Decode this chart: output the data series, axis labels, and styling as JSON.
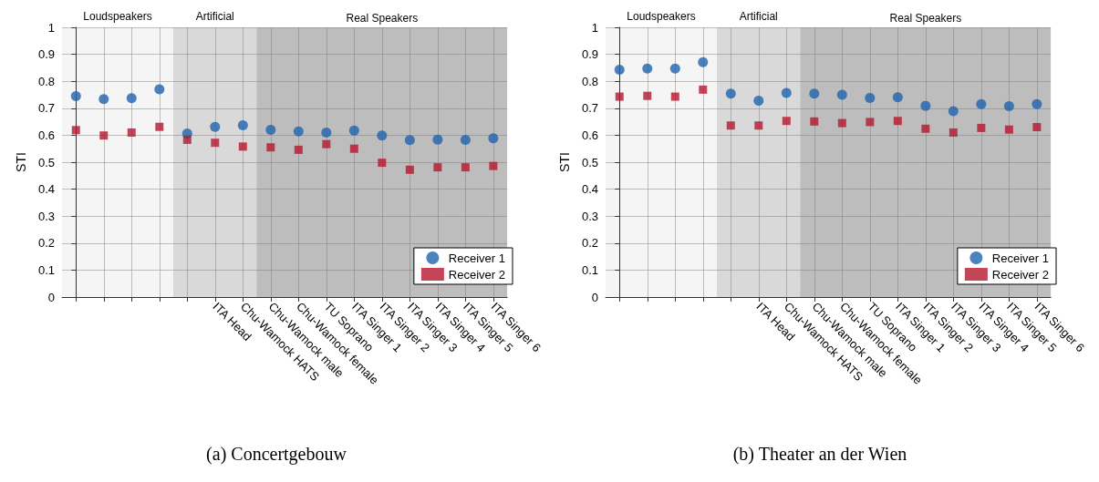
{
  "chart_data": [
    {
      "type": "scatter",
      "title": "(a) Concertgebouw",
      "ylabel": "STI",
      "categories": [
        null,
        null,
        null,
        null,
        null,
        "ITA Head",
        "Chu-Wamock HATS",
        "Chu-Wamock male",
        "Chu-Wamock female",
        "TU Soprano",
        "ITA Singer 1",
        "ITA Singer 2",
        "ITA Singer 3",
        "ITA Singer 4",
        "ITA Singer 5",
        "ITA Singer 6"
      ],
      "series": [
        {
          "name": "Receiver 1",
          "color": "#1f63ad",
          "marker": "circle",
          "values": [
            0.745,
            0.734,
            0.737,
            0.77,
            0.606,
            0.631,
            0.637,
            0.62,
            0.614,
            0.61,
            0.617,
            0.599,
            0.582,
            0.584,
            0.583,
            0.589
          ]
        },
        {
          "name": "Receiver 2",
          "color": "#b5172e",
          "marker": "square",
          "values": [
            0.619,
            0.599,
            0.61,
            0.631,
            0.583,
            0.572,
            0.558,
            0.555,
            0.546,
            0.567,
            0.55,
            0.498,
            0.472,
            0.481,
            0.481,
            0.486
          ]
        }
      ],
      "bands": [
        {
          "axis": "x",
          "from": "Chu-Wamock male",
          "to": "ITA Singer 6",
          "label": "Real Speakers",
          "color": "#bdbdbd"
        }
      ],
      "annotations": [
        "Loudspeakers",
        "Artificial"
      ],
      "ylim": [
        0,
        1
      ],
      "yticks": [
        0,
        0.1,
        0.2,
        0.3,
        0.4,
        0.5,
        0.6,
        0.7,
        0.8,
        0.9,
        1
      ],
      "grid": true,
      "legend": "bottom right"
    },
    {
      "type": "scatter",
      "title": "(b) Theater an der Wien",
      "ylabel": "STI",
      "categories": [
        null,
        null,
        null,
        null,
        null,
        "ITA Head",
        "Chu-Wamock HATS",
        "Chu-Wamock male",
        "Chu-Wamock female",
        "TU Soprano",
        "ITA Singer 1",
        "ITA Singer 2",
        "ITA Singer 3",
        "ITA Singer 4",
        "ITA Singer 5",
        "ITA Singer 6"
      ],
      "series": [
        {
          "name": "Receiver 1",
          "color": "#1f63ad",
          "marker": "circle",
          "values": [
            0.843,
            0.847,
            0.847,
            0.871,
            0.754,
            0.728,
            0.757,
            0.754,
            0.75,
            0.738,
            0.741,
            0.709,
            0.689,
            0.715,
            0.708,
            0.715
          ]
        },
        {
          "name": "Receiver 2",
          "color": "#b5172e",
          "marker": "square",
          "values": [
            0.743,
            0.746,
            0.743,
            0.769,
            0.636,
            0.636,
            0.653,
            0.651,
            0.645,
            0.649,
            0.653,
            0.624,
            0.61,
            0.627,
            0.621,
            0.63
          ]
        }
      ],
      "bands": [
        {
          "axis": "x",
          "from": "Chu-Wamock male",
          "to": "ITA Singer 6",
          "label": "Real Speakers",
          "color": "#bdbdbd"
        }
      ],
      "annotations": [
        "Loudspeakers",
        "Artificial"
      ],
      "ylim": [
        0,
        1
      ],
      "yticks": [
        0,
        0.1,
        0.2,
        0.3,
        0.4,
        0.5,
        0.6,
        0.7,
        0.8,
        0.9,
        1
      ],
      "grid": true,
      "legend": "bottom right"
    }
  ]
}
